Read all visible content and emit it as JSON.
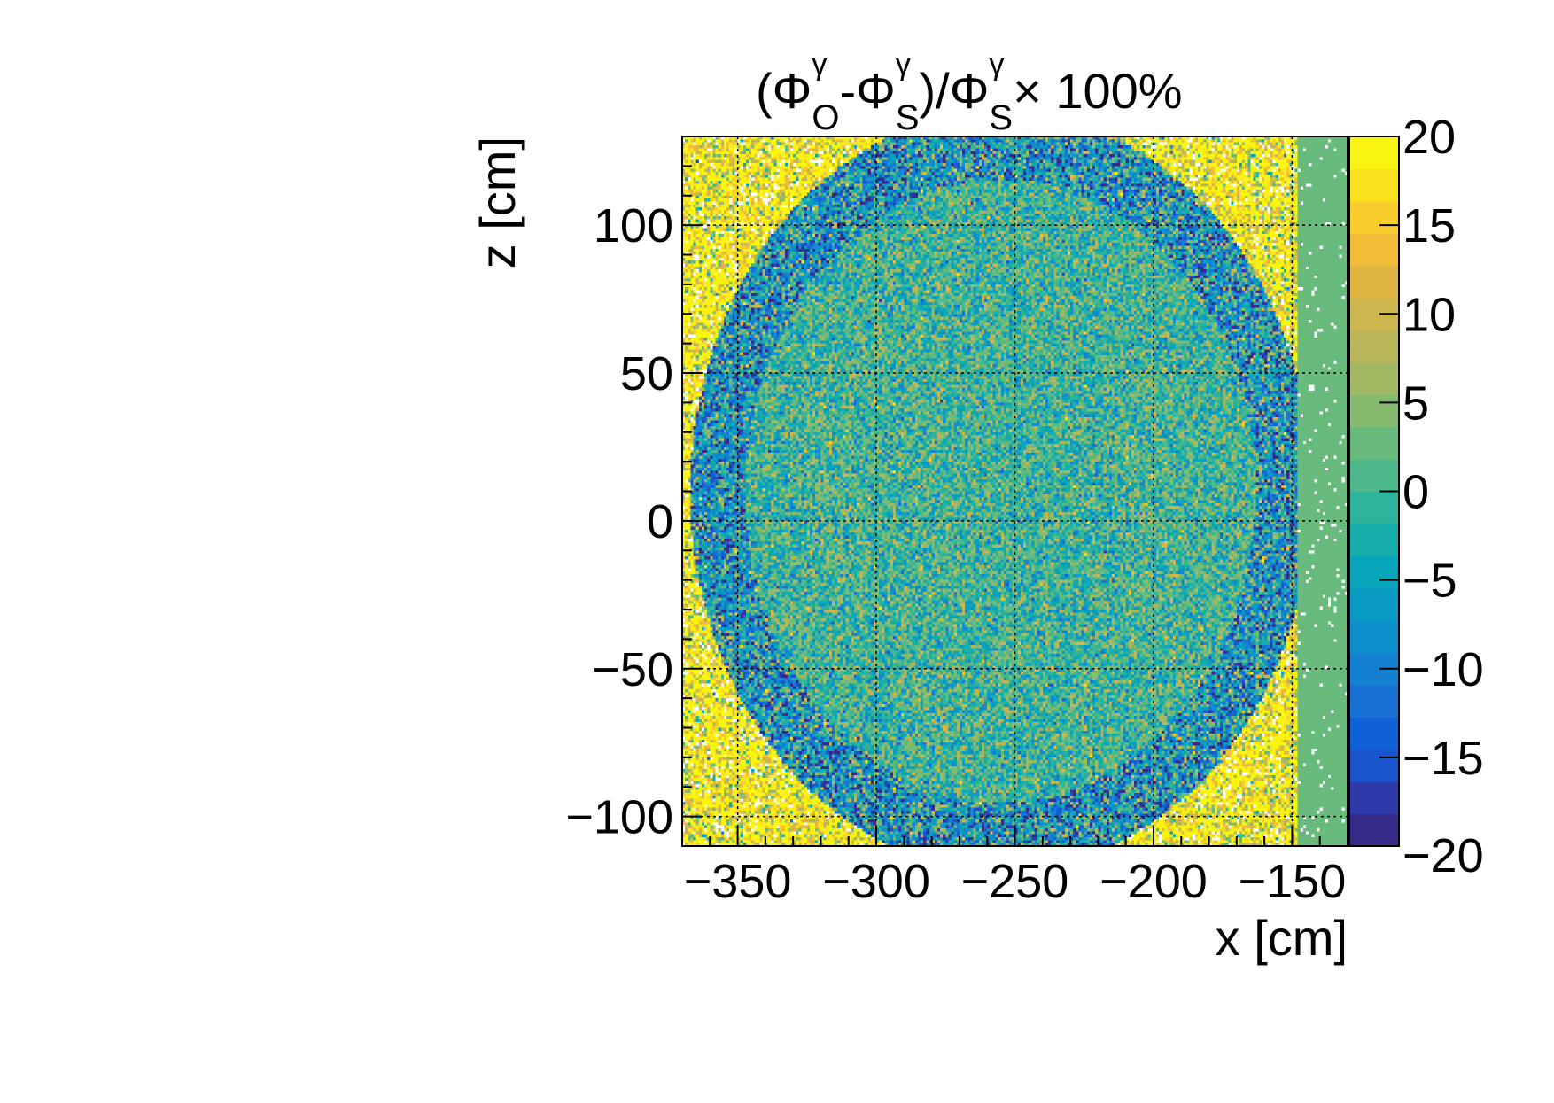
{
  "chart_data": {
    "type": "heatmap",
    "title": {
      "open": "(",
      "phi": "Φ",
      "gamma": "γ",
      "sub_o": "O",
      "sub_s": "S",
      "dash": "-",
      "close_slash": ")/",
      "tail": "× 100%"
    },
    "xlabel": "x [cm]",
    "ylabel": "z [cm]",
    "xlim": [
      -370,
      -130
    ],
    "ylim": [
      -110,
      130
    ],
    "zlim": [
      -20,
      20
    ],
    "x_ticks": [
      -350,
      -300,
      -250,
      -200,
      -150
    ],
    "y_ticks": [
      -100,
      -50,
      0,
      50,
      100
    ],
    "z_ticks": [
      -20,
      -15,
      -10,
      -5,
      0,
      5,
      10,
      15,
      20
    ],
    "x_tick_labels": [
      "−350",
      "−300",
      "−250",
      "−200",
      "−150"
    ],
    "y_tick_labels": [
      "−100",
      "−50",
      "0",
      "50",
      "100"
    ],
    "z_tick_labels": [
      "−20",
      "−15",
      "−10",
      "−5",
      "0",
      "5",
      "10",
      "15",
      "20"
    ],
    "grid": true,
    "colormap": "parula",
    "palette": [
      "#352a87",
      "#2d3aa8",
      "#1a54cc",
      "#0f62d6",
      "#1872d4",
      "#1481d0",
      "#0c8fcc",
      "#099ac4",
      "#07a5b9",
      "#16adab",
      "#2fb39a",
      "#4db88a",
      "#69ba7d",
      "#86bb6f",
      "#a2b964",
      "#b9b75a",
      "#cdb64f",
      "#e0b643",
      "#f1bc38",
      "#f9cd2b",
      "#f9e21b",
      "#f9f50f"
    ],
    "description_values": {
      "center_region_mean": 0,
      "center_region_spread": 7,
      "edge_region_mean": 18,
      "far_right_strip_value": 2
    }
  }
}
